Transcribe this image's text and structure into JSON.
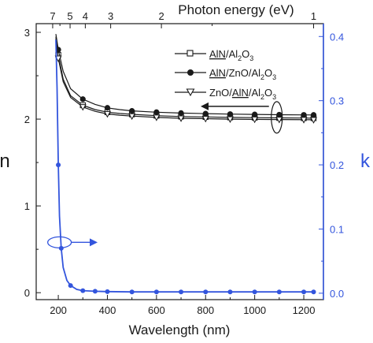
{
  "chart_data": {
    "type": "line",
    "xlabel": "Wavelength (nm)",
    "ylabel_left": "n",
    "ylabel_right": "k",
    "x2label": "Photon energy (eV)",
    "xlim": [
      110,
      1280
    ],
    "ylim_left": [
      -0.08,
      3.1
    ],
    "ylim_right": [
      -0.01,
      0.42
    ],
    "x_ticks": [
      200,
      400,
      600,
      800,
      1000,
      1200
    ],
    "y_left_ticks": [
      0,
      1,
      2,
      3
    ],
    "y_right_ticks": [
      0.0,
      0.1,
      0.2,
      0.3,
      0.4
    ],
    "y_left_tick_labels": [
      "0",
      "1",
      "2",
      "3"
    ],
    "y_right_tick_labels": [
      "0.0",
      "0.1",
      "0.2",
      "0.3",
      "0.4"
    ],
    "top_ticks": [
      7,
      5,
      4,
      3,
      2,
      1
    ],
    "top_tick_labels": [
      "7",
      "5",
      "4",
      "3",
      "2",
      "1"
    ],
    "grid": false,
    "legend_position": "top-right",
    "colors": {
      "k_series": "#3355dd",
      "n_series": "#1a1a1a"
    },
    "x": [
      190,
      200,
      220,
      250,
      300,
      350,
      400,
      450,
      500,
      600,
      700,
      800,
      900,
      1000,
      1100,
      1200,
      1240
    ],
    "series": [
      {
        "name": "AlN/Al2O3",
        "axis": "left",
        "marker": "square-open",
        "values": [
          2.95,
          2.74,
          2.46,
          2.27,
          2.16,
          2.11,
          2.08,
          2.065,
          2.055,
          2.04,
          2.03,
          2.025,
          2.02,
          2.017,
          2.014,
          2.012,
          2.011
        ]
      },
      {
        "name": "AlN/ZnO/Al2O3",
        "axis": "left",
        "marker": "circle-filled",
        "values": [
          2.98,
          2.8,
          2.55,
          2.35,
          2.23,
          2.17,
          2.13,
          2.11,
          2.095,
          2.08,
          2.07,
          2.063,
          2.058,
          2.054,
          2.051,
          2.049,
          2.048
        ]
      },
      {
        "name": "ZnO/AlN/Al2O3",
        "axis": "left",
        "marker": "triangle-down-open",
        "values": [
          2.93,
          2.7,
          2.43,
          2.25,
          2.14,
          2.09,
          2.06,
          2.045,
          2.035,
          2.02,
          2.01,
          2.005,
          2.0,
          1.997,
          1.995,
          1.993,
          1.992
        ]
      },
      {
        "name": "k",
        "axis": "right",
        "marker": "circle-filled",
        "x": [
          190,
          195,
          200,
          205,
          212,
          220,
          235,
          250,
          275,
          300,
          350,
          400,
          500,
          600,
          700,
          800,
          900,
          1000,
          1100,
          1200,
          1240
        ],
        "values": [
          0.395,
          0.32,
          0.2,
          0.12,
          0.07,
          0.04,
          0.02,
          0.012,
          0.006,
          0.004,
          0.003,
          0.0025,
          0.002,
          0.002,
          0.002,
          0.002,
          0.002,
          0.002,
          0.002,
          0.002,
          0.002
        ]
      }
    ],
    "legend": [
      {
        "name": "AlN/Al2O3",
        "underlined": "AlN",
        "rest": "/Al2O3"
      },
      {
        "name": "AlN/ZnO/Al2O3",
        "underlined": "AlN",
        "rest": "/ZnO/Al2O3"
      },
      {
        "name": "ZnO/AlN/Al2O3",
        "lead": "ZnO/",
        "underlined": "AlN",
        "rest": "/Al2O3"
      }
    ],
    "annotations": [
      {
        "type": "ellipse-arrow",
        "target": "n",
        "direction": "left",
        "at_x": 1090,
        "at_y": 2.02
      },
      {
        "type": "ellipse-arrow",
        "target": "k",
        "direction": "right",
        "at_x": 205,
        "at_y": 0.58
      }
    ]
  }
}
